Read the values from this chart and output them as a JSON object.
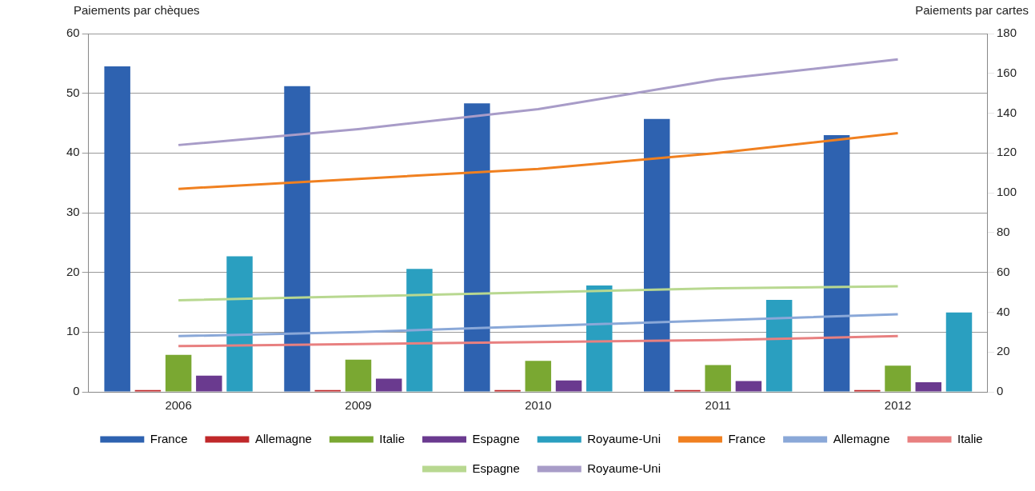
{
  "chart_data": {
    "type": "bar",
    "ylabel": "Paiements par chèques",
    "y2label": "Paiements par cartes",
    "categories": [
      "2006",
      "2009",
      "2010",
      "2011",
      "2012"
    ],
    "ylim": [
      0,
      60
    ],
    "yticks": [
      0,
      10,
      20,
      30,
      40,
      50,
      60
    ],
    "y2lim": [
      0,
      180
    ],
    "y2ticks": [
      0,
      20,
      40,
      60,
      80,
      100,
      120,
      140,
      160,
      180
    ],
    "grid": "y",
    "legend": "bottom",
    "series": [
      {
        "name": "France",
        "color": "#2e62b0",
        "values": [
          54.5,
          51.2,
          48.3,
          45.7,
          43.0
        ]
      },
      {
        "name": "Allemagne",
        "color": "#c0282a",
        "values": [
          0.3,
          0.3,
          0.3,
          0.3,
          0.3
        ]
      },
      {
        "name": "Italie",
        "color": "#7aa832",
        "values": [
          6.2,
          5.4,
          5.2,
          4.5,
          4.4
        ]
      },
      {
        "name": "Espagne",
        "color": "#6a3a8f",
        "values": [
          2.7,
          2.2,
          1.9,
          1.8,
          1.6
        ]
      },
      {
        "name": "Royaume-Uni",
        "color": "#2a9fc0",
        "values": [
          22.7,
          20.6,
          17.8,
          15.4,
          13.3
        ]
      },
      {
        "name": "France",
        "type": "line",
        "axis": "y2",
        "color": "#f08020",
        "values": [
          102,
          107,
          112,
          120,
          130
        ]
      },
      {
        "name": "Allemagne",
        "type": "line",
        "axis": "y2",
        "color": "#8aa8d8",
        "values": [
          28,
          30,
          33,
          36,
          39
        ]
      },
      {
        "name": "Italie",
        "type": "line",
        "axis": "y2",
        "color": "#e88080",
        "values": [
          23,
          24,
          25,
          26,
          28
        ]
      },
      {
        "name": "Espagne",
        "type": "line",
        "axis": "y2",
        "color": "#b8d890",
        "values": [
          46,
          48,
          50,
          52,
          53
        ]
      },
      {
        "name": "Royaume-Uni",
        "type": "line",
        "axis": "y2",
        "color": "#a89cc8",
        "values": [
          124,
          132,
          142,
          157,
          167
        ]
      }
    ]
  }
}
